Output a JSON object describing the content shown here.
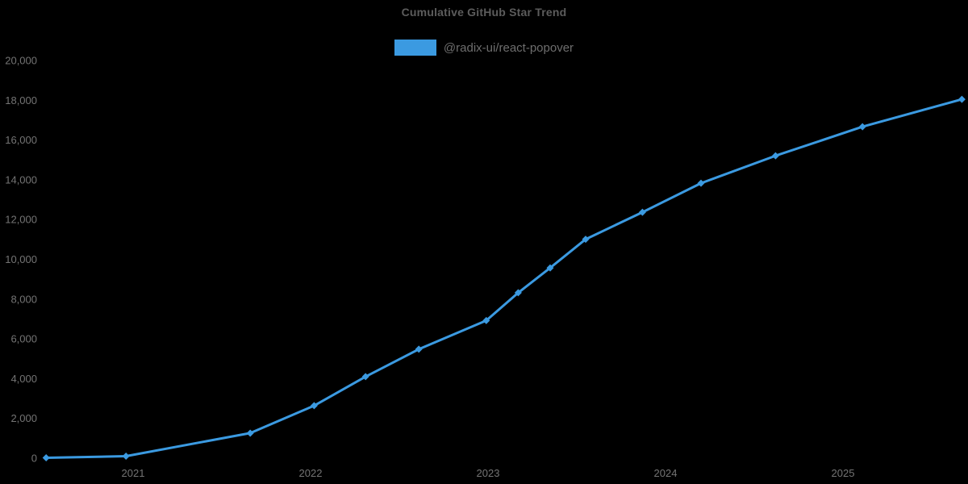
{
  "title": "Cumulative GitHub Star Trend",
  "legend": {
    "label": "@radix-ui/react-popover"
  },
  "colors": {
    "background": "#000000",
    "line": "#3b9ae1",
    "marker": "#3b9ae1",
    "legend_swatch": "#3b9ae1",
    "title_text": "#5c5c5c",
    "tick_text": "#747474",
    "legend_text": "#6e6e6e"
  },
  "chart_data": {
    "type": "line",
    "title": "Cumulative GitHub Star Trend",
    "xlabel": "",
    "ylabel": "",
    "legend_position": "top-center",
    "grid": false,
    "xlim": [
      2020.45,
      2025.7
    ],
    "ylim": [
      0,
      20000
    ],
    "x_ticks": [
      2021,
      2022,
      2023,
      2024,
      2025
    ],
    "y_ticks": [
      0,
      2000,
      4000,
      6000,
      8000,
      10000,
      12000,
      14000,
      16000,
      18000,
      20000
    ],
    "series": [
      {
        "name": "@radix-ui/react-popover",
        "marker": "diamond",
        "points": [
          {
            "x": 2020.51,
            "date": "2020-07",
            "y": 20
          },
          {
            "x": 2020.96,
            "date": "2020-12",
            "y": 100
          },
          {
            "x": 2021.66,
            "date": "2021-09",
            "y": 1260
          },
          {
            "x": 2022.02,
            "date": "2022-01",
            "y": 2640
          },
          {
            "x": 2022.31,
            "date": "2022-04",
            "y": 4100
          },
          {
            "x": 2022.61,
            "date": "2022-08",
            "y": 5480
          },
          {
            "x": 2022.99,
            "date": "2023-01",
            "y": 6920
          },
          {
            "x": 2023.17,
            "date": "2023-03",
            "y": 8320
          },
          {
            "x": 2023.35,
            "date": "2023-05",
            "y": 9570
          },
          {
            "x": 2023.55,
            "date": "2023-07",
            "y": 11010
          },
          {
            "x": 2023.87,
            "date": "2023-11",
            "y": 12370
          },
          {
            "x": 2024.2,
            "date": "2024-03",
            "y": 13830
          },
          {
            "x": 2024.62,
            "date": "2024-08",
            "y": 15210
          },
          {
            "x": 2025.11,
            "date": "2025-02",
            "y": 16670
          },
          {
            "x": 2025.67,
            "date": "2025-09",
            "y": 18050
          }
        ]
      }
    ]
  }
}
